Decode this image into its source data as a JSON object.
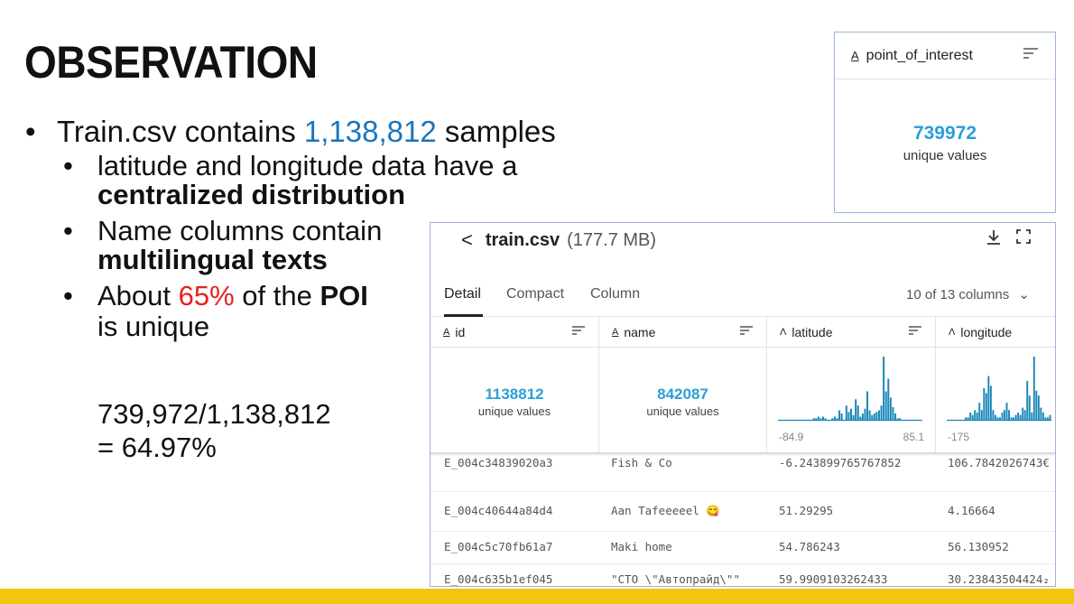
{
  "slide": {
    "title": "OBSERVATION",
    "bullet1": {
      "pre": "Train.csv contains ",
      "num": "1,138,812",
      "post": " samples"
    },
    "bullet2": {
      "line": "latitude and longitude data have a",
      "bold": "centralized distribution"
    },
    "bullet3": {
      "line": "Name columns contain",
      "bold": "multilingual texts"
    },
    "bullet4": {
      "pre": "About ",
      "pct": "65%",
      "mid": " of the ",
      "bold": "POI",
      "post": "is unique"
    },
    "ratio_line1": "739,972/1,138,812",
    "ratio_line2": "= 64.97%",
    "colors": {
      "blue": "#1b75bc",
      "red": "#e8201c",
      "footer": "#f2c511"
    }
  },
  "poi_card": {
    "type_icon": "string-type-icon",
    "column": "point_of_interest",
    "unique_count": "739972",
    "unique_label": "unique values"
  },
  "kaggle": {
    "back": "<",
    "filename": "train.csv",
    "size": "(177.7 MB)",
    "tabs": [
      "Detail",
      "Compact",
      "Column"
    ],
    "active_tab": "Detail",
    "column_count": "10 of 13 columns",
    "columns": [
      {
        "name": "id",
        "unique": "1138812",
        "label": "unique values"
      },
      {
        "name": "name",
        "unique": "842087",
        "label": "unique values"
      },
      {
        "name": "latitude",
        "min": "-84.9",
        "max": "85.1"
      },
      {
        "name": "longitude",
        "min": "-175"
      }
    ],
    "latitude_histogram": [
      0,
      0,
      0,
      0,
      0,
      0,
      0,
      0,
      0,
      0,
      0,
      0,
      0,
      0,
      0,
      1,
      1,
      2,
      1,
      2,
      1,
      0,
      0,
      1,
      2,
      1,
      6,
      4,
      0,
      9,
      5,
      7,
      3,
      13,
      9,
      2,
      4,
      7,
      18,
      6,
      3,
      4,
      5,
      6,
      9,
      40,
      18,
      26,
      14,
      8,
      4,
      1,
      1,
      0,
      0,
      0,
      0,
      0,
      0,
      0,
      0,
      0
    ],
    "longitude_histogram": [
      0,
      0,
      0,
      0,
      0,
      0,
      0,
      0,
      1,
      1,
      3,
      2,
      4,
      3,
      7,
      4,
      13,
      11,
      18,
      14,
      4,
      2,
      1,
      1,
      3,
      4,
      7,
      4,
      1,
      1,
      2,
      3,
      2,
      5,
      4,
      16,
      10,
      3,
      26,
      12,
      10,
      5,
      3,
      1,
      1,
      2
    ],
    "rows": [
      {
        "id": "E_004c34839020a3",
        "name": "Fish & Co",
        "latitude": "-6.243899765767852",
        "longitude": "106.7842026743€"
      },
      {
        "id": "E_004c40644a84d4",
        "name": "Aan Tafeeeeel 😋",
        "latitude": "51.29295",
        "longitude": "4.16664"
      },
      {
        "id": "E_004c5c70fb61a7",
        "name": "Maki home",
        "latitude": "54.786243",
        "longitude": "56.130952"
      },
      {
        "id": "E_004c635b1ef045",
        "name": "\"СТО \\\"Автопрайд\\\"\"",
        "latitude": "59.9909103262433",
        "longitude": "30.23843504424₂"
      }
    ]
  }
}
